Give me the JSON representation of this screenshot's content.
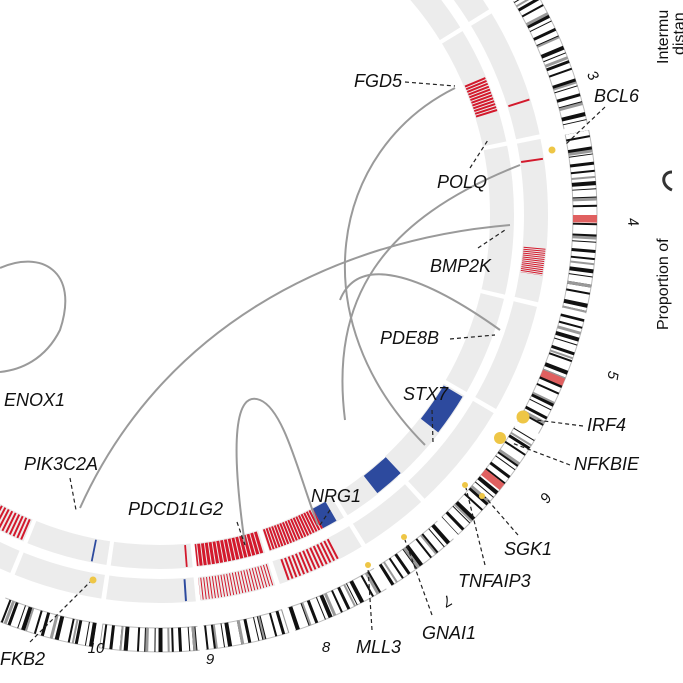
{
  "genes": [
    "FGD5",
    "BCL6",
    "POLQ",
    "BMP2K",
    "PDE8B",
    "STX7",
    "IRF4",
    "NFKBIE",
    "SGK1",
    "TNFAIP3",
    "GNAI1",
    "MLL3",
    "NRG1",
    "PDCD1LG2",
    "PIK3C2A",
    "ENOX1",
    "FKB2"
  ],
  "chromosomes": [
    "3",
    "4",
    "5",
    "6",
    "7",
    "8",
    "9",
    "10"
  ],
  "side": [
    "Intermu",
    "distan",
    "Proportion of"
  ]
}
